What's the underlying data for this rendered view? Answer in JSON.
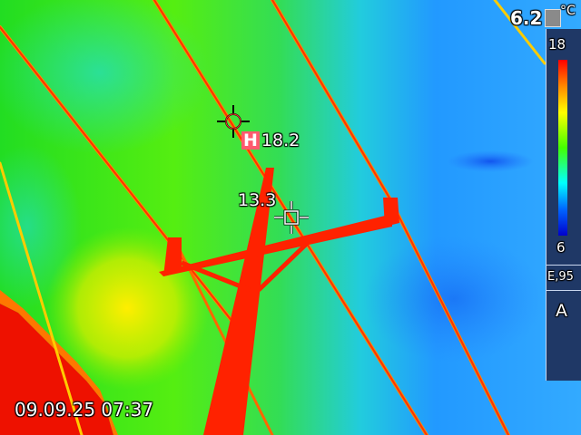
{
  "hot_spot": {
    "badge": "H",
    "value": "18.2"
  },
  "spot_meter": {
    "value": "13.3"
  },
  "top_right_value": "6.2",
  "datetime": "09.09.25 07:37",
  "scale": {
    "unit": "°C",
    "max": "18",
    "min": "6",
    "emissivity": "E,95",
    "mode": "A"
  },
  "icons": [
    "hot-spot-crosshair-icon",
    "spot-meter-crosshair-icon",
    "unit-box-icon"
  ],
  "colors": {
    "accent_hot_badge": "#ff5a6e",
    "panel": "#1f3866"
  }
}
